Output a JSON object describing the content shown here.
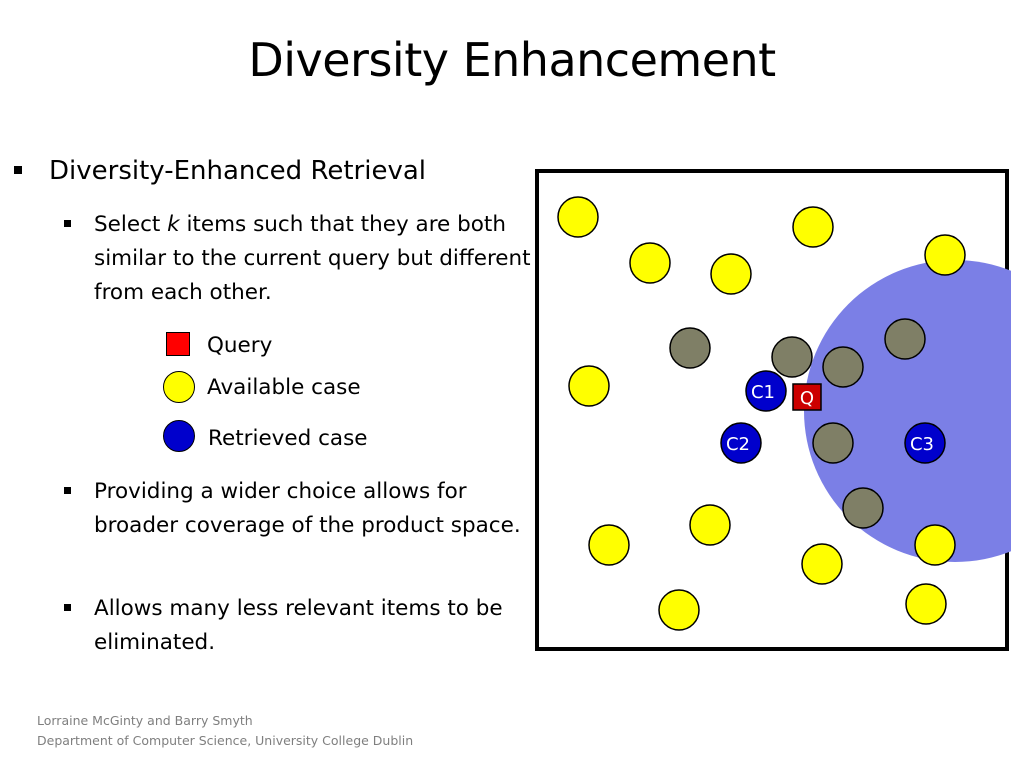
{
  "slide": {
    "title": "Diversity Enhancement"
  },
  "bullets": {
    "main": "Diversity-Enhanced Retrieval",
    "sub1_before": "Select ",
    "sub1_italic": "k",
    "sub1_after": " items such that they are both similar to the current query but different from each other.",
    "sub2": "Providing a wider choice allows for broader coverage of the product space.",
    "sub3": "Allows many less relevant items to be eliminated."
  },
  "legend": {
    "query": "Query",
    "available": "Available case",
    "retrieved": "Retrieved case"
  },
  "diagram": {
    "retrieved_labels": [
      "C1",
      "C2",
      "C3"
    ],
    "query_label": "Q",
    "colors": {
      "region": "#7b7fe6",
      "available": "#ffff00",
      "covered": "#7f7f66",
      "retrieved": "#0000cc",
      "query": "#cc0000",
      "label_text": "#ffffff"
    }
  },
  "footer": {
    "line1": "Lorraine McGinty and Barry Smyth",
    "line2": "Department of Computer Science, University College Dublin"
  }
}
